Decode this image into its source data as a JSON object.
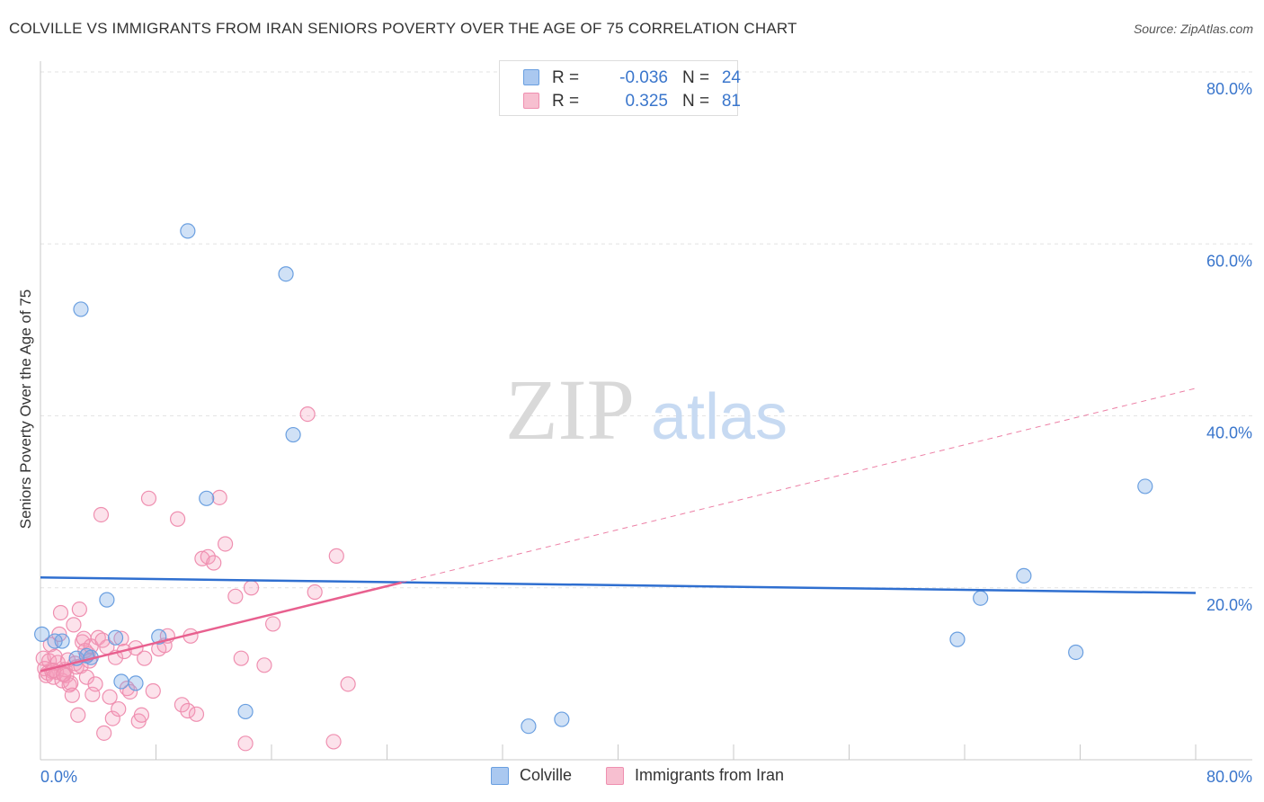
{
  "title": "COLVILLE VS IMMIGRANTS FROM IRAN SENIORS POVERTY OVER THE AGE OF 75 CORRELATION CHART",
  "source": "Source: ZipAtlas.com",
  "watermark": {
    "zip": "ZIP",
    "atlas": "atlas"
  },
  "legend_top": {
    "rows": [
      {
        "r_label": "R =",
        "r_value": "-0.036",
        "n_label": "N =",
        "n_value": "24",
        "color": "#aac8f0"
      },
      {
        "r_label": "R =",
        "r_value": "0.325",
        "n_label": "N =",
        "n_value": "81",
        "color": "#f7bfd0"
      }
    ]
  },
  "legend_bottom": [
    {
      "label": "Colville",
      "color": "#aac8f0"
    },
    {
      "label": "Immigrants from Iran",
      "color": "#f7bfd0"
    }
  ],
  "colors": {
    "colville_fill": "rgba(120,170,230,0.35)",
    "colville_stroke": "#6a9fe0",
    "colville_line": "#2f6fd0",
    "iran_fill": "rgba(245,160,190,0.30)",
    "iran_stroke": "#ef8fb0",
    "iran_line": "#e8608f",
    "axis_text": "#3a76cc"
  },
  "chart_data": {
    "type": "scatter",
    "title": "COLVILLE VS IMMIGRANTS FROM IRAN SENIORS POVERTY OVER THE AGE OF 75 CORRELATION CHART",
    "xlabel": "",
    "ylabel": "Seniors Poverty Over the Age of 75",
    "xlim": [
      0,
      80
    ],
    "ylim": [
      0,
      80
    ],
    "x_tick_labels": [
      "0.0%",
      "80.0%"
    ],
    "y_tick_labels": [
      "20.0%",
      "40.0%",
      "60.0%",
      "80.0%"
    ],
    "y_tick_values": [
      20,
      40,
      60,
      80
    ],
    "x_minor_ticks": [
      0,
      8,
      16,
      24,
      32,
      40,
      48,
      56,
      64,
      72,
      80
    ],
    "series": [
      {
        "name": "Colville",
        "points": [
          [
            0.1,
            14.6
          ],
          [
            1.5,
            13.8
          ],
          [
            2.8,
            52.4
          ],
          [
            3.5,
            11.9
          ],
          [
            4.6,
            18.6
          ],
          [
            5.2,
            14.2
          ],
          [
            6.6,
            8.9
          ],
          [
            8.2,
            14.3
          ],
          [
            10.2,
            61.5
          ],
          [
            11.5,
            30.4
          ],
          [
            14.2,
            5.6
          ],
          [
            17.0,
            56.5
          ],
          [
            17.5,
            37.8
          ],
          [
            33.8,
            3.9
          ],
          [
            36.1,
            4.7
          ],
          [
            63.5,
            14.0
          ],
          [
            65.1,
            18.8
          ],
          [
            68.1,
            21.4
          ],
          [
            71.7,
            12.5
          ],
          [
            76.5,
            31.8
          ],
          [
            2.5,
            11.8
          ],
          [
            5.6,
            9.1
          ],
          [
            1.0,
            13.8
          ],
          [
            3.2,
            12.1
          ]
        ],
        "trend": {
          "x": [
            0,
            80
          ],
          "y": [
            21.2,
            19.4
          ],
          "style": "solid"
        }
      },
      {
        "name": "Immigrants from Iran",
        "points": [
          [
            0.2,
            11.8
          ],
          [
            0.3,
            10.6
          ],
          [
            0.4,
            9.8
          ],
          [
            0.5,
            10.1
          ],
          [
            0.6,
            11.5
          ],
          [
            0.7,
            13.4
          ],
          [
            0.8,
            10.3
          ],
          [
            0.9,
            9.6
          ],
          [
            1.0,
            12.0
          ],
          [
            1.1,
            10.2
          ],
          [
            1.2,
            11.3
          ],
          [
            1.3,
            14.6
          ],
          [
            1.4,
            17.1
          ],
          [
            1.5,
            9.2
          ],
          [
            1.6,
            10.0
          ],
          [
            1.7,
            10.5
          ],
          [
            1.8,
            9.8
          ],
          [
            1.9,
            11.6
          ],
          [
            2.0,
            8.7
          ],
          [
            2.1,
            8.9
          ],
          [
            2.2,
            7.5
          ],
          [
            2.3,
            15.7
          ],
          [
            2.4,
            11.2
          ],
          [
            2.5,
            10.8
          ],
          [
            2.6,
            5.2
          ],
          [
            2.7,
            17.5
          ],
          [
            2.8,
            10.9
          ],
          [
            2.9,
            13.7
          ],
          [
            3.0,
            14.1
          ],
          [
            3.1,
            12.7
          ],
          [
            3.2,
            9.6
          ],
          [
            3.3,
            12.3
          ],
          [
            3.4,
            11.5
          ],
          [
            3.5,
            13.2
          ],
          [
            3.6,
            7.6
          ],
          [
            3.8,
            8.8
          ],
          [
            4.0,
            14.2
          ],
          [
            4.2,
            28.5
          ],
          [
            4.4,
            3.1
          ],
          [
            4.6,
            13.1
          ],
          [
            4.8,
            7.3
          ],
          [
            5.0,
            4.8
          ],
          [
            5.2,
            11.9
          ],
          [
            5.4,
            5.9
          ],
          [
            5.6,
            14.1
          ],
          [
            5.8,
            12.6
          ],
          [
            6.0,
            8.3
          ],
          [
            6.2,
            7.9
          ],
          [
            6.6,
            13.0
          ],
          [
            6.8,
            4.5
          ],
          [
            7.0,
            5.2
          ],
          [
            7.2,
            11.8
          ],
          [
            7.5,
            30.4
          ],
          [
            7.8,
            8.0
          ],
          [
            8.2,
            12.9
          ],
          [
            8.6,
            13.3
          ],
          [
            8.8,
            14.4
          ],
          [
            9.5,
            28.0
          ],
          [
            9.8,
            6.4
          ],
          [
            10.2,
            5.7
          ],
          [
            10.4,
            14.4
          ],
          [
            10.8,
            5.3
          ],
          [
            11.2,
            23.4
          ],
          [
            11.6,
            23.6
          ],
          [
            12.0,
            22.9
          ],
          [
            12.4,
            30.5
          ],
          [
            12.8,
            25.1
          ],
          [
            13.5,
            19.0
          ],
          [
            13.9,
            11.8
          ],
          [
            14.2,
            1.9
          ],
          [
            14.6,
            20.0
          ],
          [
            15.5,
            11.0
          ],
          [
            16.1,
            15.8
          ],
          [
            18.5,
            40.2
          ],
          [
            19.0,
            19.5
          ],
          [
            20.5,
            23.7
          ],
          [
            21.3,
            8.8
          ],
          [
            20.3,
            2.1
          ],
          [
            0.9,
            10.4
          ],
          [
            1.6,
            9.9
          ],
          [
            4.3,
            13.9
          ]
        ],
        "trend": {
          "x": [
            0,
            25
          ],
          "y": [
            10.3,
            20.6
          ],
          "style": "solid",
          "extended": {
            "x": [
              25,
              80
            ],
            "y": [
              20.6,
              43.2
            ],
            "style": "dashed"
          }
        }
      }
    ]
  }
}
